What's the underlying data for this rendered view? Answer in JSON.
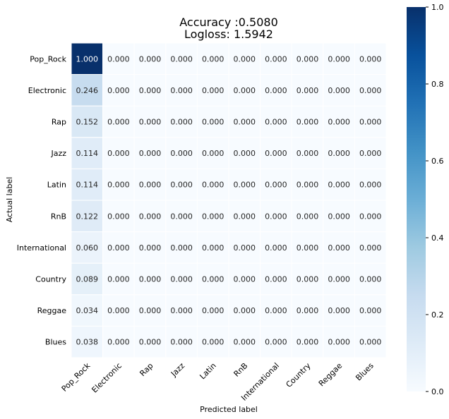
{
  "chart_data": {
    "type": "heatmap",
    "title_lines": [
      "Accuracy :0.5080",
      "Logloss: 1.5942"
    ],
    "xlabel": "Predicted label",
    "ylabel": "Actual label",
    "row_labels": [
      "Pop_Rock",
      "Electronic",
      "Rap",
      "Jazz",
      "Latin",
      "RnB",
      "International",
      "Country",
      "Reggae",
      "Blues"
    ],
    "col_labels": [
      "Pop_Rock",
      "Electronic",
      "Rap",
      "Jazz",
      "Latin",
      "RnB",
      "International",
      "Country",
      "Reggae",
      "Blues"
    ],
    "values": [
      [
        1.0,
        0.0,
        0.0,
        0.0,
        0.0,
        0.0,
        0.0,
        0.0,
        0.0,
        0.0
      ],
      [
        0.246,
        0.0,
        0.0,
        0.0,
        0.0,
        0.0,
        0.0,
        0.0,
        0.0,
        0.0
      ],
      [
        0.152,
        0.0,
        0.0,
        0.0,
        0.0,
        0.0,
        0.0,
        0.0,
        0.0,
        0.0
      ],
      [
        0.114,
        0.0,
        0.0,
        0.0,
        0.0,
        0.0,
        0.0,
        0.0,
        0.0,
        0.0
      ],
      [
        0.114,
        0.0,
        0.0,
        0.0,
        0.0,
        0.0,
        0.0,
        0.0,
        0.0,
        0.0
      ],
      [
        0.122,
        0.0,
        0.0,
        0.0,
        0.0,
        0.0,
        0.0,
        0.0,
        0.0,
        0.0
      ],
      [
        0.06,
        0.0,
        0.0,
        0.0,
        0.0,
        0.0,
        0.0,
        0.0,
        0.0,
        0.0
      ],
      [
        0.089,
        0.0,
        0.0,
        0.0,
        0.0,
        0.0,
        0.0,
        0.0,
        0.0,
        0.0
      ],
      [
        0.034,
        0.0,
        0.0,
        0.0,
        0.0,
        0.0,
        0.0,
        0.0,
        0.0,
        0.0
      ],
      [
        0.038,
        0.0,
        0.0,
        0.0,
        0.0,
        0.0,
        0.0,
        0.0,
        0.0,
        0.0
      ]
    ],
    "value_format_decimals": 3,
    "colormap": "Blues",
    "color_low": "#f7fbff",
    "color_high": "#08306b",
    "vmin": 0.0,
    "vmax": 1.0,
    "colorbar_ticks": [
      "0.0",
      "0.2",
      "0.4",
      "0.6",
      "0.8",
      "1.0"
    ],
    "grid_line_color": "#ffffff"
  }
}
